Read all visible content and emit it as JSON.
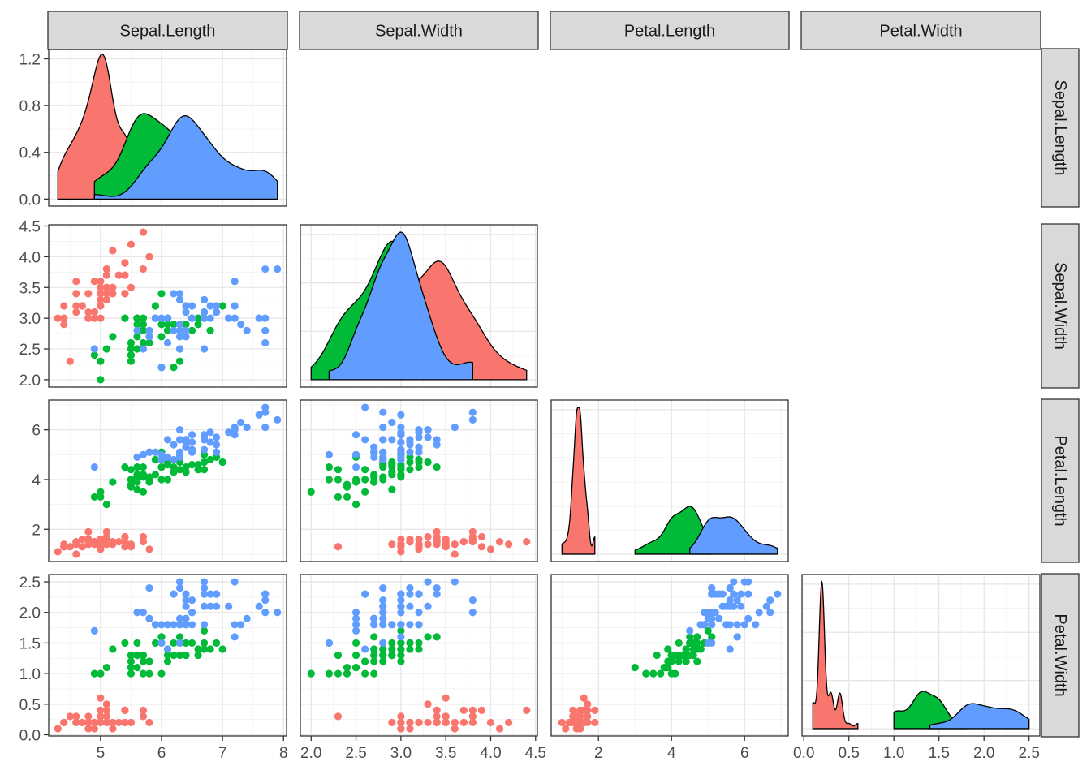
{
  "chart_data": {
    "type": "scatter",
    "layout": "pairs-matrix",
    "variables": [
      "Sepal.Length",
      "Sepal.Width",
      "Petal.Length",
      "Petal.Width"
    ],
    "group_colors": [
      "#f8766d",
      "#00ba38",
      "#619cff"
    ],
    "grid": true,
    "legend": "none",
    "axes": {
      "Sepal.Length": {
        "range": [
          4.15,
          8.05
        ],
        "ticks": [
          5,
          6,
          7,
          8
        ],
        "labels": [
          "5",
          "6",
          "7",
          "8"
        ]
      },
      "Sepal.Width": {
        "range": [
          1.88,
          4.52
        ],
        "ticks": [
          2.0,
          2.5,
          3.0,
          3.5,
          4.0,
          4.5
        ],
        "labels": [
          "2.0",
          "2.5",
          "3.0",
          "3.5",
          "4.0",
          "4.5"
        ]
      },
      "Petal.Length": {
        "range": [
          0.705,
          7.195
        ],
        "ticks": [
          2,
          4,
          6
        ],
        "labels": [
          "2",
          "4",
          "6"
        ]
      },
      "Petal.Width": {
        "range": [
          -0.02,
          2.62
        ],
        "ticks": [
          0.0,
          0.5,
          1.0,
          1.5,
          2.0,
          2.5
        ],
        "labels": [
          "0.0",
          "0.5",
          "1.0",
          "1.5",
          "2.0",
          "2.5"
        ]
      }
    },
    "density_axis": {
      "range": [
        -0.06,
        1.28
      ],
      "ticks": [
        0.0,
        0.4,
        0.8,
        1.2
      ],
      "labels": [
        "0.0",
        "0.4",
        "0.8",
        "1.2"
      ]
    },
    "observations": [
      [
        5.1,
        3.5,
        1.4,
        0.2,
        0
      ],
      [
        4.9,
        3.0,
        1.4,
        0.2,
        0
      ],
      [
        4.7,
        3.2,
        1.3,
        0.2,
        0
      ],
      [
        4.6,
        3.1,
        1.5,
        0.2,
        0
      ],
      [
        5.0,
        3.6,
        1.4,
        0.2,
        0
      ],
      [
        5.4,
        3.9,
        1.7,
        0.4,
        0
      ],
      [
        4.6,
        3.4,
        1.4,
        0.3,
        0
      ],
      [
        5.0,
        3.4,
        1.5,
        0.2,
        0
      ],
      [
        4.4,
        2.9,
        1.4,
        0.2,
        0
      ],
      [
        4.9,
        3.1,
        1.5,
        0.1,
        0
      ],
      [
        5.4,
        3.7,
        1.5,
        0.2,
        0
      ],
      [
        4.8,
        3.4,
        1.6,
        0.2,
        0
      ],
      [
        4.8,
        3.0,
        1.4,
        0.1,
        0
      ],
      [
        4.3,
        3.0,
        1.1,
        0.1,
        0
      ],
      [
        5.8,
        4.0,
        1.2,
        0.2,
        0
      ],
      [
        5.7,
        4.4,
        1.5,
        0.4,
        0
      ],
      [
        5.4,
        3.9,
        1.3,
        0.4,
        0
      ],
      [
        5.1,
        3.5,
        1.4,
        0.3,
        0
      ],
      [
        5.7,
        3.8,
        1.7,
        0.3,
        0
      ],
      [
        5.1,
        3.8,
        1.5,
        0.3,
        0
      ],
      [
        5.4,
        3.4,
        1.7,
        0.2,
        0
      ],
      [
        5.1,
        3.7,
        1.5,
        0.4,
        0
      ],
      [
        4.6,
        3.6,
        1.0,
        0.2,
        0
      ],
      [
        5.1,
        3.3,
        1.7,
        0.5,
        0
      ],
      [
        4.8,
        3.4,
        1.9,
        0.2,
        0
      ],
      [
        5.0,
        3.0,
        1.6,
        0.2,
        0
      ],
      [
        5.0,
        3.4,
        1.6,
        0.4,
        0
      ],
      [
        5.2,
        3.5,
        1.5,
        0.2,
        0
      ],
      [
        5.2,
        3.4,
        1.4,
        0.2,
        0
      ],
      [
        4.7,
        3.2,
        1.6,
        0.2,
        0
      ],
      [
        4.8,
        3.1,
        1.6,
        0.2,
        0
      ],
      [
        5.4,
        3.4,
        1.5,
        0.4,
        0
      ],
      [
        5.2,
        4.1,
        1.5,
        0.1,
        0
      ],
      [
        5.5,
        4.2,
        1.4,
        0.2,
        0
      ],
      [
        4.9,
        3.1,
        1.5,
        0.2,
        0
      ],
      [
        5.0,
        3.2,
        1.2,
        0.2,
        0
      ],
      [
        5.5,
        3.5,
        1.3,
        0.2,
        0
      ],
      [
        4.9,
        3.6,
        1.4,
        0.1,
        0
      ],
      [
        4.4,
        3.0,
        1.3,
        0.2,
        0
      ],
      [
        5.1,
        3.4,
        1.5,
        0.2,
        0
      ],
      [
        5.0,
        3.5,
        1.3,
        0.3,
        0
      ],
      [
        4.5,
        2.3,
        1.3,
        0.3,
        0
      ],
      [
        4.4,
        3.2,
        1.3,
        0.2,
        0
      ],
      [
        5.0,
        3.5,
        1.6,
        0.6,
        0
      ],
      [
        5.1,
        3.8,
        1.9,
        0.4,
        0
      ],
      [
        4.8,
        3.0,
        1.4,
        0.3,
        0
      ],
      [
        5.1,
        3.8,
        1.6,
        0.2,
        0
      ],
      [
        4.6,
        3.2,
        1.4,
        0.2,
        0
      ],
      [
        5.3,
        3.7,
        1.5,
        0.2,
        0
      ],
      [
        5.0,
        3.3,
        1.4,
        0.2,
        0
      ],
      [
        7.0,
        3.2,
        4.7,
        1.4,
        1
      ],
      [
        6.4,
        3.2,
        4.5,
        1.5,
        1
      ],
      [
        6.9,
        3.1,
        4.9,
        1.5,
        1
      ],
      [
        5.5,
        2.3,
        4.0,
        1.3,
        1
      ],
      [
        6.5,
        2.8,
        4.6,
        1.5,
        1
      ],
      [
        5.7,
        2.8,
        4.5,
        1.3,
        1
      ],
      [
        6.3,
        3.3,
        4.7,
        1.6,
        1
      ],
      [
        4.9,
        2.4,
        3.3,
        1.0,
        1
      ],
      [
        6.6,
        2.9,
        4.6,
        1.3,
        1
      ],
      [
        5.2,
        2.7,
        3.9,
        1.4,
        1
      ],
      [
        5.0,
        2.0,
        3.5,
        1.0,
        1
      ],
      [
        5.9,
        3.0,
        4.2,
        1.5,
        1
      ],
      [
        6.0,
        2.2,
        4.0,
        1.0,
        1
      ],
      [
        6.1,
        2.9,
        4.7,
        1.4,
        1
      ],
      [
        5.6,
        2.9,
        3.6,
        1.3,
        1
      ],
      [
        6.7,
        3.1,
        4.4,
        1.4,
        1
      ],
      [
        5.6,
        3.0,
        4.5,
        1.5,
        1
      ],
      [
        5.8,
        2.7,
        4.1,
        1.0,
        1
      ],
      [
        6.2,
        2.2,
        4.5,
        1.5,
        1
      ],
      [
        5.6,
        2.5,
        3.9,
        1.1,
        1
      ],
      [
        5.9,
        3.2,
        4.8,
        1.8,
        1
      ],
      [
        6.1,
        2.8,
        4.0,
        1.3,
        1
      ],
      [
        6.3,
        2.5,
        4.9,
        1.5,
        1
      ],
      [
        6.1,
        2.8,
        4.7,
        1.2,
        1
      ],
      [
        6.4,
        2.9,
        4.3,
        1.3,
        1
      ],
      [
        6.6,
        3.0,
        4.4,
        1.4,
        1
      ],
      [
        6.8,
        2.8,
        4.8,
        1.4,
        1
      ],
      [
        6.7,
        3.0,
        5.0,
        1.7,
        1
      ],
      [
        6.0,
        2.9,
        4.5,
        1.5,
        1
      ],
      [
        5.7,
        2.6,
        3.5,
        1.0,
        1
      ],
      [
        5.5,
        2.4,
        3.8,
        1.1,
        1
      ],
      [
        5.5,
        2.4,
        3.7,
        1.0,
        1
      ],
      [
        5.8,
        2.7,
        3.9,
        1.2,
        1
      ],
      [
        6.0,
        2.7,
        5.1,
        1.6,
        1
      ],
      [
        5.4,
        3.0,
        4.5,
        1.5,
        1
      ],
      [
        6.0,
        3.4,
        4.5,
        1.6,
        1
      ],
      [
        6.7,
        3.1,
        4.7,
        1.5,
        1
      ],
      [
        6.3,
        2.3,
        4.4,
        1.3,
        1
      ],
      [
        5.6,
        3.0,
        4.1,
        1.3,
        1
      ],
      [
        5.5,
        2.5,
        4.0,
        1.3,
        1
      ],
      [
        5.5,
        2.6,
        4.4,
        1.2,
        1
      ],
      [
        6.1,
        3.0,
        4.6,
        1.4,
        1
      ],
      [
        5.8,
        2.6,
        4.0,
        1.2,
        1
      ],
      [
        5.0,
        2.3,
        3.3,
        1.0,
        1
      ],
      [
        5.6,
        2.7,
        4.2,
        1.3,
        1
      ],
      [
        5.7,
        3.0,
        4.2,
        1.2,
        1
      ],
      [
        5.7,
        2.9,
        4.2,
        1.3,
        1
      ],
      [
        6.2,
        2.9,
        4.3,
        1.3,
        1
      ],
      [
        5.1,
        2.5,
        3.0,
        1.1,
        1
      ],
      [
        5.7,
        2.8,
        4.1,
        1.3,
        1
      ],
      [
        6.3,
        3.3,
        6.0,
        2.5,
        2
      ],
      [
        5.8,
        2.7,
        5.1,
        1.9,
        2
      ],
      [
        7.1,
        3.0,
        5.9,
        2.1,
        2
      ],
      [
        6.3,
        2.9,
        5.6,
        1.8,
        2
      ],
      [
        6.5,
        3.0,
        5.8,
        2.2,
        2
      ],
      [
        7.6,
        3.0,
        6.6,
        2.1,
        2
      ],
      [
        4.9,
        2.5,
        4.5,
        1.7,
        2
      ],
      [
        7.3,
        2.9,
        6.3,
        1.8,
        2
      ],
      [
        6.7,
        2.5,
        5.8,
        1.8,
        2
      ],
      [
        7.2,
        3.6,
        6.1,
        2.5,
        2
      ],
      [
        6.5,
        3.2,
        5.1,
        2.0,
        2
      ],
      [
        6.4,
        2.7,
        5.3,
        1.9,
        2
      ],
      [
        6.8,
        3.0,
        5.5,
        2.1,
        2
      ],
      [
        5.7,
        2.5,
        5.0,
        2.0,
        2
      ],
      [
        5.8,
        2.8,
        5.1,
        2.4,
        2
      ],
      [
        6.4,
        3.2,
        5.3,
        2.3,
        2
      ],
      [
        6.5,
        3.0,
        5.5,
        1.8,
        2
      ],
      [
        7.7,
        3.8,
        6.7,
        2.2,
        2
      ],
      [
        7.7,
        2.6,
        6.9,
        2.3,
        2
      ],
      [
        6.0,
        2.2,
        5.0,
        1.5,
        2
      ],
      [
        6.9,
        3.2,
        5.7,
        2.3,
        2
      ],
      [
        5.6,
        2.8,
        4.9,
        2.0,
        2
      ],
      [
        7.7,
        2.8,
        6.7,
        2.0,
        2
      ],
      [
        6.3,
        2.7,
        4.9,
        1.8,
        2
      ],
      [
        6.7,
        3.3,
        5.7,
        2.1,
        2
      ],
      [
        7.2,
        3.2,
        6.0,
        1.8,
        2
      ],
      [
        6.2,
        2.8,
        4.8,
        1.8,
        2
      ],
      [
        6.1,
        3.0,
        4.9,
        1.8,
        2
      ],
      [
        6.4,
        2.8,
        5.6,
        2.1,
        2
      ],
      [
        7.2,
        3.0,
        5.8,
        1.6,
        2
      ],
      [
        7.4,
        2.8,
        6.1,
        1.9,
        2
      ],
      [
        7.9,
        3.8,
        6.4,
        2.0,
        2
      ],
      [
        6.4,
        2.8,
        5.6,
        2.2,
        2
      ],
      [
        6.3,
        2.8,
        5.1,
        1.5,
        2
      ],
      [
        6.1,
        2.6,
        5.6,
        1.4,
        2
      ],
      [
        7.7,
        3.0,
        6.1,
        2.3,
        2
      ],
      [
        6.3,
        3.4,
        5.6,
        2.4,
        2
      ],
      [
        6.4,
        3.1,
        5.5,
        1.8,
        2
      ],
      [
        6.0,
        3.0,
        4.8,
        1.8,
        2
      ],
      [
        6.9,
        3.1,
        5.4,
        2.1,
        2
      ],
      [
        6.7,
        3.1,
        5.6,
        2.4,
        2
      ],
      [
        6.9,
        3.1,
        5.1,
        2.3,
        2
      ],
      [
        5.8,
        2.7,
        5.1,
        1.9,
        2
      ],
      [
        6.8,
        3.2,
        5.9,
        2.3,
        2
      ],
      [
        6.7,
        3.3,
        5.7,
        2.5,
        2
      ],
      [
        6.7,
        3.0,
        5.2,
        2.3,
        2
      ],
      [
        6.3,
        2.5,
        5.0,
        1.9,
        2
      ],
      [
        6.5,
        3.0,
        5.2,
        2.0,
        2
      ],
      [
        6.2,
        3.4,
        5.4,
        2.3,
        2
      ],
      [
        5.9,
        3.0,
        5.1,
        1.8,
        2
      ]
    ]
  }
}
